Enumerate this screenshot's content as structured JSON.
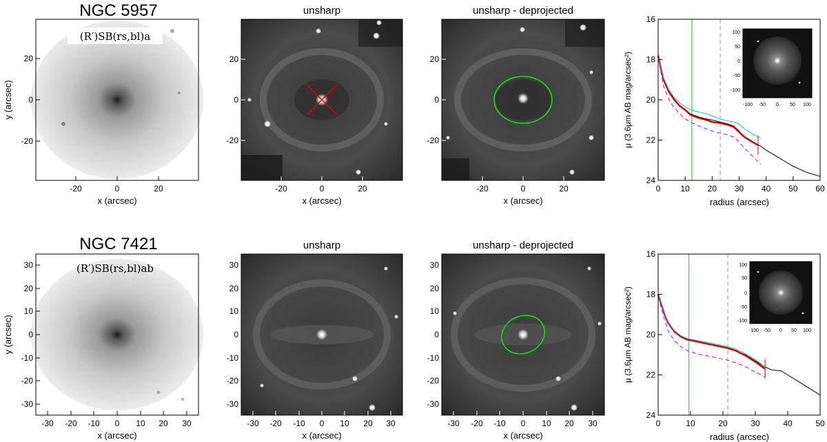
{
  "rows": [
    {
      "galaxy_name": "NGC 5957",
      "classification": "(R′)SB(rs,bl)a",
      "panel_titles": [
        "unsharp",
        "unsharp - deprojected"
      ],
      "image_axis": {
        "xlabel": "x (arcsec)",
        "ylabel": "y (arcsec)",
        "range": [
          -39,
          39
        ],
        "ticks": [
          -20,
          0,
          20
        ]
      },
      "profile": {
        "ylabel": "μ (3.6μm AB mag/arcsec²)",
        "xlabel": "radius (arcsec)",
        "xlim": [
          0,
          60
        ],
        "ylim": [
          24,
          16
        ],
        "xticks": [
          0,
          10,
          20,
          30,
          40,
          50,
          60
        ],
        "yticks": [
          16,
          18,
          20,
          22,
          24
        ],
        "inset_ticks": [
          -100,
          -50,
          0,
          50,
          100
        ],
        "green_line_radius": 12.5,
        "dashed_line_radius": 23
      }
    },
    {
      "galaxy_name": "NGC 7421",
      "classification": "(R′)SB(rs,bl)ab",
      "panel_titles": [
        "unsharp",
        "unsharp - deprojected"
      ],
      "image_axis": {
        "xlabel": "x (arcsec)",
        "ylabel": "y (arcsec)",
        "range": [
          -35,
          35
        ],
        "ticks": [
          -30,
          -20,
          -10,
          0,
          10,
          20,
          30
        ]
      },
      "profile": {
        "ylabel": "μ (3.6μm AB mag/arcsec²)",
        "xlabel": "radius (arcsec)",
        "xlim": [
          0,
          50
        ],
        "ylim": [
          24,
          16
        ],
        "xticks": [
          0,
          10,
          20,
          30,
          40,
          50
        ],
        "yticks": [
          16,
          18,
          20,
          22,
          24
        ],
        "inset_ticks": [
          -100,
          -50,
          0,
          50,
          100
        ],
        "green_line_radius": 9.5,
        "dashed_line_radius": 21.5
      }
    }
  ],
  "colors": {
    "total_profile": "#000000",
    "fit_profile": "#dd0000",
    "upper_profile": "#00cccc",
    "lower_profile": "#dd00dd",
    "marker_green": "#00dd00",
    "marker_dashed": "#999999",
    "ellipse": "#00ee00",
    "cross": "#ee0000"
  },
  "chart_data": [
    {
      "type": "line",
      "xlabel": "radius (arcsec)",
      "ylabel": "μ (3.6μm AB mag/arcsec²)",
      "xlim": [
        0,
        60
      ],
      "ylim": [
        24,
        16
      ],
      "series": [
        {
          "color": "black",
          "x": [
            0,
            1,
            2,
            4,
            6,
            8,
            10,
            12,
            15,
            18,
            20,
            23,
            26,
            28,
            30,
            32,
            35,
            38,
            40,
            45,
            50,
            55,
            60
          ],
          "y": [
            17.8,
            18.4,
            19.0,
            19.6,
            20.0,
            20.3,
            20.5,
            20.7,
            20.85,
            20.95,
            21.0,
            21.1,
            21.2,
            21.3,
            21.55,
            21.85,
            22.1,
            22.3,
            22.5,
            22.9,
            23.3,
            23.6,
            23.8
          ]
        },
        {
          "color": "red",
          "x": [
            0,
            1,
            2,
            4,
            6,
            8,
            10,
            12,
            15,
            18,
            20,
            23,
            26,
            28,
            30,
            32,
            35,
            37
          ],
          "y": [
            17.8,
            18.4,
            19.0,
            19.6,
            20.0,
            20.3,
            20.5,
            20.75,
            20.9,
            21.0,
            21.1,
            21.15,
            21.25,
            21.35,
            21.6,
            21.85,
            22.1,
            22.25
          ]
        },
        {
          "color": "cyan",
          "x": [
            0,
            1,
            2,
            4,
            6,
            8,
            10,
            12,
            15,
            18,
            20,
            23,
            26,
            28,
            30,
            32,
            35,
            38
          ],
          "y": [
            17.8,
            18.3,
            18.9,
            19.5,
            19.9,
            20.15,
            20.35,
            20.5,
            20.6,
            20.7,
            20.8,
            20.95,
            21.05,
            21.1,
            21.2,
            21.45,
            21.7,
            21.9
          ]
        },
        {
          "color": "magenta",
          "x": [
            0,
            1,
            2,
            4,
            6,
            8,
            10,
            12,
            15,
            18,
            20,
            23,
            26,
            28,
            30,
            32,
            35,
            38
          ],
          "y": [
            17.9,
            18.6,
            19.3,
            20.0,
            20.4,
            20.7,
            20.95,
            21.1,
            21.3,
            21.45,
            21.55,
            21.65,
            21.75,
            21.85,
            22.1,
            22.4,
            22.8,
            23.2
          ]
        }
      ]
    },
    {
      "type": "line",
      "xlabel": "radius (arcsec)",
      "ylabel": "μ (3.6μm AB mag/arcsec²)",
      "xlim": [
        0,
        50
      ],
      "ylim": [
        24,
        16
      ],
      "series": [
        {
          "color": "black",
          "x": [
            0,
            1,
            2,
            3,
            5,
            7,
            9,
            12,
            15,
            18,
            21,
            24,
            27,
            30,
            33,
            35,
            38,
            40,
            43,
            46,
            50
          ],
          "y": [
            18.0,
            18.5,
            19.0,
            19.4,
            19.85,
            20.1,
            20.25,
            20.35,
            20.45,
            20.55,
            20.65,
            20.8,
            21.0,
            21.3,
            21.6,
            21.75,
            21.8,
            22.0,
            22.3,
            22.6,
            23.0
          ]
        },
        {
          "color": "red",
          "x": [
            0,
            1,
            2,
            3,
            5,
            7,
            9,
            12,
            15,
            18,
            21,
            24,
            27,
            30,
            33
          ],
          "y": [
            18.0,
            18.5,
            19.0,
            19.4,
            19.85,
            20.1,
            20.25,
            20.35,
            20.45,
            20.55,
            20.65,
            20.8,
            21.05,
            21.35,
            21.7
          ]
        },
        {
          "color": "cyan",
          "x": [
            0,
            1,
            2,
            3,
            5,
            7,
            9,
            12,
            15,
            18,
            21,
            24,
            27,
            30,
            33
          ],
          "y": [
            18.0,
            18.45,
            18.95,
            19.35,
            19.8,
            20.05,
            20.2,
            20.28,
            20.38,
            20.48,
            20.58,
            20.72,
            20.95,
            21.25,
            21.6
          ]
        },
        {
          "color": "magenta",
          "x": [
            0,
            1,
            2,
            3,
            5,
            7,
            9,
            12,
            15,
            18,
            21,
            24,
            27,
            30,
            33
          ],
          "y": [
            18.1,
            18.7,
            19.3,
            19.8,
            20.3,
            20.6,
            20.8,
            20.95,
            21.05,
            21.15,
            21.25,
            21.4,
            21.6,
            21.85,
            22.1
          ]
        }
      ]
    }
  ]
}
